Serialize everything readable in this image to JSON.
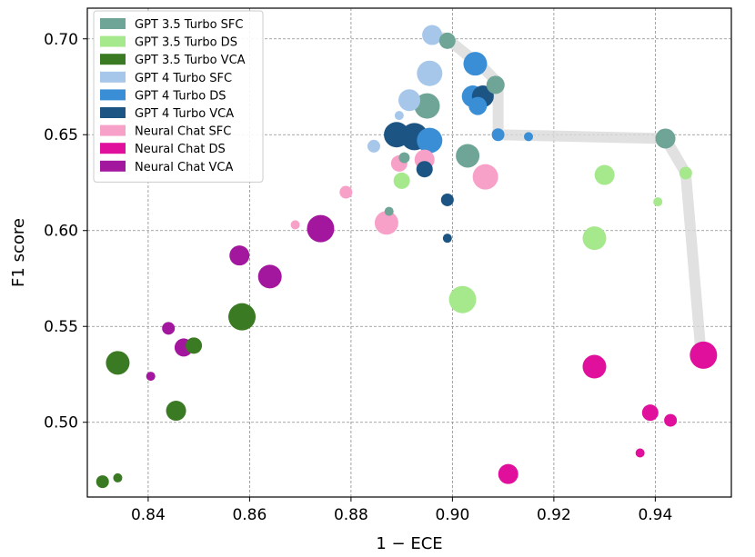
{
  "chart_data": {
    "type": "scatter",
    "xlabel": "1 − ECE",
    "ylabel": "F1 score",
    "xlim": [
      0.828,
      0.955
    ],
    "ylim": [
      0.461,
      0.716
    ],
    "x_ticks": [
      0.84,
      0.86,
      0.88,
      0.9,
      0.92,
      0.94
    ],
    "x_tick_labels": [
      "0.84",
      "0.86",
      "0.88",
      "0.90",
      "0.92",
      "0.94"
    ],
    "y_ticks": [
      0.5,
      0.55,
      0.6,
      0.65,
      0.7
    ],
    "y_tick_labels": [
      "0.50",
      "0.55",
      "0.60",
      "0.65",
      "0.70"
    ],
    "grid": true,
    "legend_position": "top-left",
    "pareto_frontier": [
      [
        0.896,
        0.702
      ],
      [
        0.899,
        0.7
      ],
      [
        0.906,
        0.685
      ],
      [
        0.909,
        0.677
      ],
      [
        0.909,
        0.65
      ],
      [
        0.942,
        0.648
      ],
      [
        0.946,
        0.63
      ],
      [
        0.949,
        0.536
      ]
    ],
    "series": [
      {
        "name": "GPT 3.5 Turbo SFC",
        "color": "#6fa596",
        "points": [
          {
            "x": 0.899,
            "y": 0.699,
            "size": 9
          },
          {
            "x": 0.895,
            "y": 0.665,
            "size": 14
          },
          {
            "x": 0.903,
            "y": 0.639,
            "size": 13
          },
          {
            "x": 0.9085,
            "y": 0.676,
            "size": 10
          },
          {
            "x": 0.942,
            "y": 0.648,
            "size": 11
          },
          {
            "x": 0.8905,
            "y": 0.638,
            "size": 6
          },
          {
            "x": 0.8875,
            "y": 0.61,
            "size": 5
          }
        ]
      },
      {
        "name": "GPT 3.5 Turbo DS",
        "color": "#a6e88c",
        "points": [
          {
            "x": 0.902,
            "y": 0.564,
            "size": 15
          },
          {
            "x": 0.928,
            "y": 0.596,
            "size": 13
          },
          {
            "x": 0.93,
            "y": 0.629,
            "size": 11
          },
          {
            "x": 0.946,
            "y": 0.63,
            "size": 7
          },
          {
            "x": 0.9405,
            "y": 0.615,
            "size": 5
          },
          {
            "x": 0.89,
            "y": 0.626,
            "size": 9
          }
        ]
      },
      {
        "name": "GPT 3.5 Turbo VCA",
        "color": "#3a7a22",
        "points": [
          {
            "x": 0.8585,
            "y": 0.555,
            "size": 15
          },
          {
            "x": 0.834,
            "y": 0.531,
            "size": 13
          },
          {
            "x": 0.8455,
            "y": 0.506,
            "size": 11
          },
          {
            "x": 0.849,
            "y": 0.54,
            "size": 9
          },
          {
            "x": 0.831,
            "y": 0.469,
            "size": 7
          },
          {
            "x": 0.834,
            "y": 0.471,
            "size": 5
          }
        ]
      },
      {
        "name": "GPT 4 Turbo SFC",
        "color": "#a7c7ea",
        "points": [
          {
            "x": 0.8955,
            "y": 0.682,
            "size": 14
          },
          {
            "x": 0.8915,
            "y": 0.668,
            "size": 12
          },
          {
            "x": 0.896,
            "y": 0.702,
            "size": 11
          },
          {
            "x": 0.8845,
            "y": 0.644,
            "size": 7
          },
          {
            "x": 0.8895,
            "y": 0.66,
            "size": 5
          }
        ]
      },
      {
        "name": "GPT 4 Turbo DS",
        "color": "#3a8ed6",
        "points": [
          {
            "x": 0.9045,
            "y": 0.687,
            "size": 13
          },
          {
            "x": 0.8955,
            "y": 0.647,
            "size": 14
          },
          {
            "x": 0.904,
            "y": 0.67,
            "size": 12
          },
          {
            "x": 0.905,
            "y": 0.665,
            "size": 10
          },
          {
            "x": 0.909,
            "y": 0.65,
            "size": 7
          },
          {
            "x": 0.915,
            "y": 0.649,
            "size": 5
          }
        ]
      },
      {
        "name": "GPT 4 Turbo VCA",
        "color": "#1c5484",
        "points": [
          {
            "x": 0.889,
            "y": 0.65,
            "size": 14
          },
          {
            "x": 0.8925,
            "y": 0.649,
            "size": 15
          },
          {
            "x": 0.906,
            "y": 0.67,
            "size": 12
          },
          {
            "x": 0.8945,
            "y": 0.632,
            "size": 9
          },
          {
            "x": 0.899,
            "y": 0.616,
            "size": 7
          },
          {
            "x": 0.899,
            "y": 0.596,
            "size": 5
          }
        ]
      },
      {
        "name": "Neural Chat SFC",
        "color": "#f7a1c8",
        "points": [
          {
            "x": 0.9065,
            "y": 0.628,
            "size": 14
          },
          {
            "x": 0.887,
            "y": 0.604,
            "size": 13
          },
          {
            "x": 0.8945,
            "y": 0.637,
            "size": 11
          },
          {
            "x": 0.8895,
            "y": 0.635,
            "size": 9
          },
          {
            "x": 0.879,
            "y": 0.62,
            "size": 7
          },
          {
            "x": 0.869,
            "y": 0.603,
            "size": 5
          }
        ]
      },
      {
        "name": "Neural Chat DS",
        "color": "#e0109c",
        "points": [
          {
            "x": 0.9495,
            "y": 0.535,
            "size": 15
          },
          {
            "x": 0.928,
            "y": 0.529,
            "size": 13
          },
          {
            "x": 0.911,
            "y": 0.473,
            "size": 11
          },
          {
            "x": 0.939,
            "y": 0.505,
            "size": 9
          },
          {
            "x": 0.943,
            "y": 0.501,
            "size": 7
          },
          {
            "x": 0.937,
            "y": 0.484,
            "size": 5
          }
        ]
      },
      {
        "name": "Neural Chat VCA",
        "color": "#a3179e",
        "points": [
          {
            "x": 0.874,
            "y": 0.601,
            "size": 15
          },
          {
            "x": 0.864,
            "y": 0.576,
            "size": 13
          },
          {
            "x": 0.858,
            "y": 0.587,
            "size": 11
          },
          {
            "x": 0.847,
            "y": 0.539,
            "size": 10
          },
          {
            "x": 0.844,
            "y": 0.549,
            "size": 7
          },
          {
            "x": 0.8405,
            "y": 0.524,
            "size": 5
          }
        ]
      }
    ]
  }
}
